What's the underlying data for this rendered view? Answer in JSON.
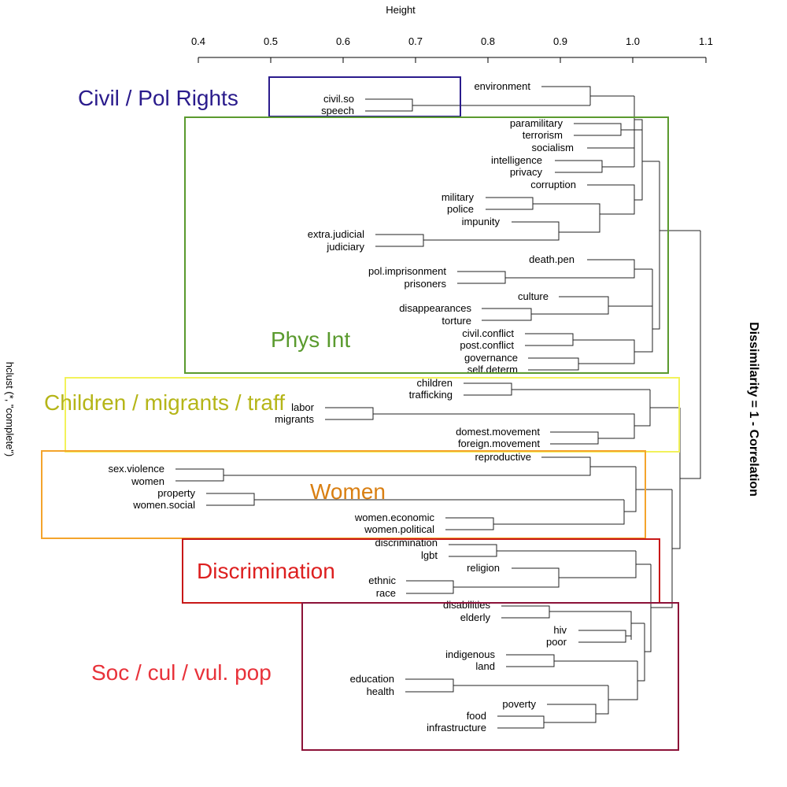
{
  "axis": {
    "title": "Height",
    "ticks": [
      "0.4",
      "0.5",
      "0.6",
      "0.7",
      "0.8",
      "0.9",
      "1.0",
      "1.1"
    ]
  },
  "side_labels": {
    "left": "hclust (*, \"complete\")",
    "right": "Dissimilarity = 1 - Correlation"
  },
  "leaves": [
    "environment",
    "civil.so",
    "speech",
    "paramilitary",
    "terrorism",
    "socialism",
    "intelligence",
    "privacy",
    "corruption",
    "military",
    "police",
    "impunity",
    "extra.judicial",
    "judiciary",
    "death.pen",
    "pol.imprisonment",
    "prisoners",
    "culture",
    "disappearances",
    "torture",
    "civil.conflict",
    "post.conflict",
    "governance",
    "self.determ",
    "children",
    "trafficking",
    "labor",
    "migrants",
    "domest.movement",
    "foreign.movement",
    "reproductive",
    "sex.violence",
    "women",
    "property",
    "women.social",
    "women.economic",
    "women.political",
    "discrimination",
    "lgbt",
    "religion",
    "ethnic",
    "race",
    "disabilities",
    "elderly",
    "hiv",
    "poor",
    "indigenous",
    "land",
    "education",
    "health",
    "poverty",
    "food",
    "infrastructure"
  ],
  "clusters": [
    {
      "title": "Civil / Pol Rights",
      "color": "#2a1b8c",
      "box_color": "#2a1b8c"
    },
    {
      "title": "Phys Int",
      "color": "#5a9a2e",
      "box_color": "#5a9a2e"
    },
    {
      "title": "Children / migrants / traff",
      "color": "#b5b518",
      "box_color": "#f2f25a"
    },
    {
      "title": "Women",
      "color": "#d97f12",
      "box_color": "#f4a42c"
    },
    {
      "title": "Discrimination",
      "color": "#dd1f1f",
      "box_color": "#c81818"
    },
    {
      "title": "Soc / cul / vul. pop",
      "color": "#e8323a",
      "box_color": "#8c1238"
    }
  ]
}
